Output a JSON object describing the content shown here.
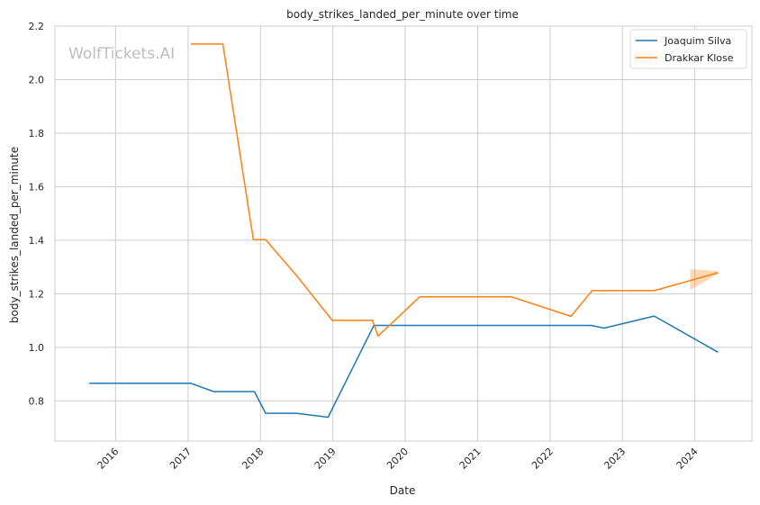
{
  "chart_data": {
    "type": "line",
    "title": "body_strikes_landed_per_minute over time",
    "xlabel": "Date",
    "ylabel": "body_strikes_landed_per_minute",
    "watermark": "WolfTickets.AI",
    "xlim": [
      "2015-03-01",
      "2024-10-15"
    ],
    "ylim": [
      0.65,
      2.2
    ],
    "x_ticks": [
      "2016",
      "2017",
      "2018",
      "2019",
      "2020",
      "2021",
      "2022",
      "2023",
      "2024"
    ],
    "y_ticks": [
      "0.8",
      "1.0",
      "1.2",
      "1.4",
      "1.6",
      "1.8",
      "2.0",
      "2.2"
    ],
    "grid": true,
    "legend_position": "top-right",
    "series": [
      {
        "name": "Joaquim Silva",
        "color": "#1f77b4",
        "points": [
          {
            "x": "2015-08-22",
            "y": 0.866
          },
          {
            "x": "2017-01-15",
            "y": 0.866
          },
          {
            "x": "2017-05-10",
            "y": 0.835
          },
          {
            "x": "2017-12-01",
            "y": 0.835
          },
          {
            "x": "2018-01-27",
            "y": 0.754
          },
          {
            "x": "2018-07-01",
            "y": 0.754
          },
          {
            "x": "2018-12-08",
            "y": 0.739
          },
          {
            "x": "2019-07-27",
            "y": 1.082
          },
          {
            "x": "2022-07-28",
            "y": 1.082
          },
          {
            "x": "2022-10-01",
            "y": 1.072
          },
          {
            "x": "2023-06-10",
            "y": 1.117
          },
          {
            "x": "2024-04-27",
            "y": 0.982
          }
        ]
      },
      {
        "name": "Drakkar Klose",
        "color": "#ff7f0e",
        "points": [
          {
            "x": "2017-01-15",
            "y": 2.133
          },
          {
            "x": "2017-06-25",
            "y": 2.133
          },
          {
            "x": "2017-11-26",
            "y": 1.402
          },
          {
            "x": "2018-01-27",
            "y": 1.402
          },
          {
            "x": "2018-07-07",
            "y": 1.264
          },
          {
            "x": "2018-12-29",
            "y": 1.101
          },
          {
            "x": "2019-07-20",
            "y": 1.101
          },
          {
            "x": "2019-08-17",
            "y": 1.042
          },
          {
            "x": "2020-03-14",
            "y": 1.189
          },
          {
            "x": "2021-06-19",
            "y": 1.189
          },
          {
            "x": "2022-04-16",
            "y": 1.116
          },
          {
            "x": "2022-08-01",
            "y": 1.212
          },
          {
            "x": "2023-06-10",
            "y": 1.212
          },
          {
            "x": "2024-04-27",
            "y": 1.279
          }
        ],
        "band": {
          "x": [
            "2023-12-09",
            "2024-04-27"
          ],
          "lower": [
            1.214,
            1.274
          ],
          "upper": [
            1.292,
            1.285
          ]
        }
      }
    ]
  }
}
